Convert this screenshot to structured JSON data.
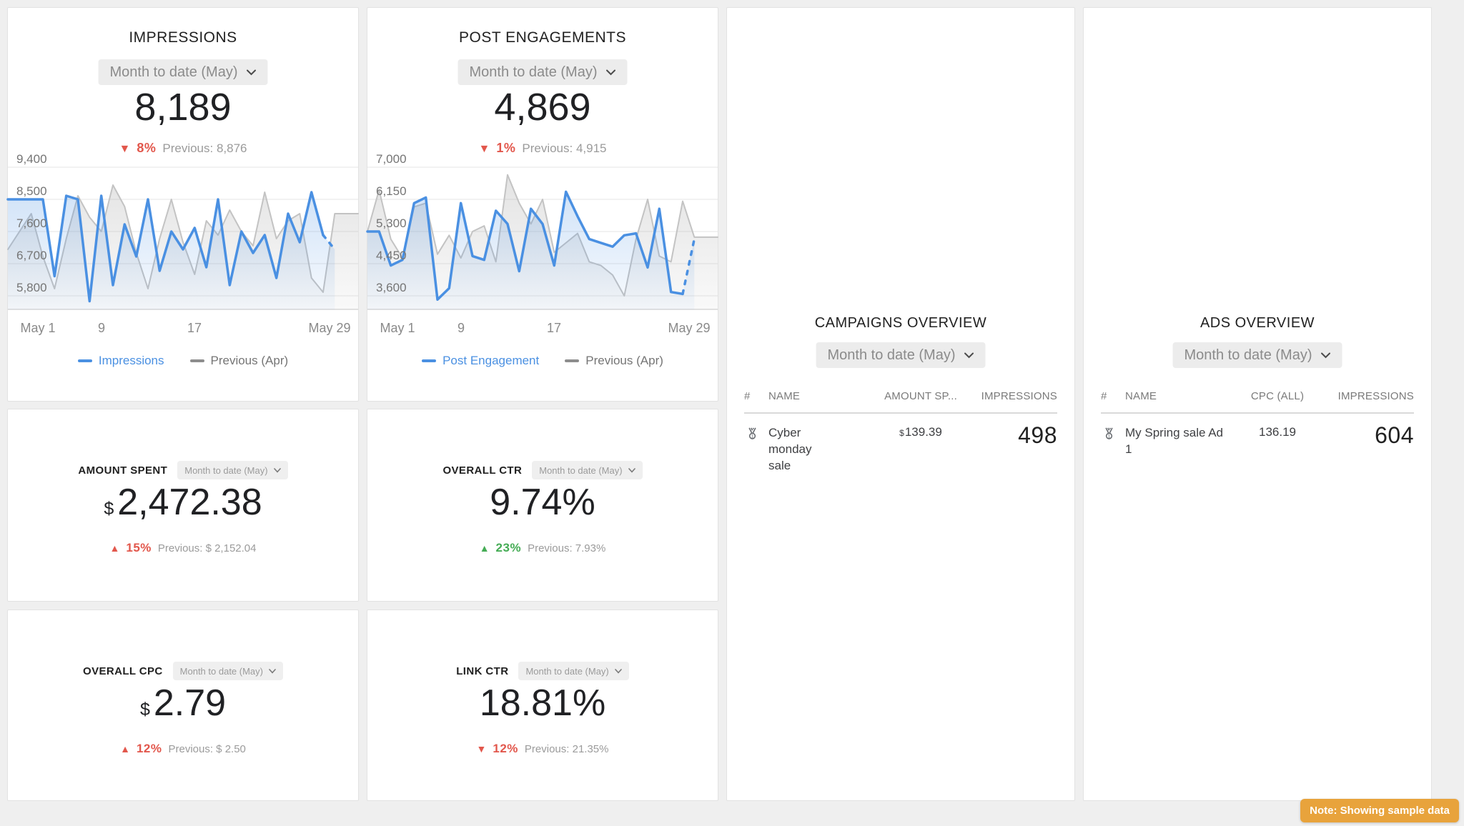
{
  "colors": {
    "accent_blue": "#4a90e2",
    "previous_gray": "#c3c3c3",
    "negative_red": "#e2574c",
    "positive_green": "#45ac55",
    "note_badge_bg": "#e8a33c",
    "dropdown_bg": "#ececec"
  },
  "impressions_card": {
    "title": "IMPRESSIONS",
    "date_range": "Month to date (May)",
    "value": "8,189",
    "delta_arrow": "▼",
    "delta_pct": "8%",
    "previous": "Previous: 8,876"
  },
  "post_card": {
    "title": "POST ENGAGEMENTS",
    "date_range": "Month to date (May)",
    "value": "4,869",
    "delta_arrow": "▼",
    "delta_pct": "1%",
    "previous": "Previous: 4,915"
  },
  "amount_card": {
    "title": "AMOUNT SPENT",
    "date_range": "Month to date (May)",
    "prefix": "$",
    "value": "2,472.38",
    "delta_arrow": "▲",
    "delta_pct": "15%",
    "previous": "Previous: $ 2,152.04"
  },
  "octr_card": {
    "title": "OVERALL CTR",
    "date_range": "Month to date (May)",
    "value": "9.74%",
    "delta_arrow": "▲",
    "delta_pct": "23%",
    "previous": "Previous: 7.93%"
  },
  "ocpc_card": {
    "title": "OVERALL CPC",
    "date_range": "Month to date (May)",
    "prefix": "$",
    "value": "2.79",
    "delta_arrow": "▲",
    "delta_pct": "12%",
    "previous": "Previous: $ 2.50"
  },
  "lctr_card": {
    "title": "LINK CTR",
    "date_range": "Month to date (May)",
    "value": "18.81%",
    "delta_arrow": "▼",
    "delta_pct": "12%",
    "previous": "Previous: 21.35%"
  },
  "campaigns_card": {
    "title": "CAMPAIGNS OVERVIEW",
    "date_range": "Month to date (May)",
    "headers": [
      "#",
      "NAME",
      "AMOUNT SP...",
      "IMPRESSIONS"
    ],
    "rows": [
      {
        "rank_icon": "medal-1",
        "name": "Cyber monday sale",
        "amount_prefix": "$",
        "amount": "139.39",
        "impressions": "498"
      }
    ]
  },
  "ads_card": {
    "title": "ADS OVERVIEW",
    "date_range": "Month to date (May)",
    "headers": [
      "#",
      "NAME",
      "CPC (ALL)",
      "IMPRESSIONS"
    ],
    "rows": [
      {
        "rank_icon": "medal-1",
        "name": "My Spring sale Ad 1",
        "cpc": "136.19",
        "impressions": "604"
      }
    ]
  },
  "note_badge": "Note: Showing sample data",
  "chart_data": [
    {
      "type": "line",
      "title": "Impressions – daily, May vs April",
      "x_slots": 31,
      "x_ticks": [
        {
          "pos": 0,
          "label": "May 1"
        },
        {
          "pos": 8,
          "label": "9"
        },
        {
          "pos": 16,
          "label": "17"
        },
        {
          "pos": 28,
          "label": "May 29"
        }
      ],
      "ylim": [
        5800,
        9400
      ],
      "yticks": [
        9400,
        8500,
        7600,
        6700,
        5800
      ],
      "grid": true,
      "legend_position": "bottom",
      "series": [
        {
          "name": "Impressions",
          "color": "#4a90e2",
          "dashed_tail": 1,
          "values": [
            8500,
            8500,
            8500,
            8500,
            6350,
            8600,
            8500,
            5650,
            8600,
            6100,
            7800,
            6900,
            8500,
            6500,
            7600,
            7100,
            7700,
            6600,
            8500,
            6100,
            7600,
            7000,
            7500,
            6300,
            8100,
            7300,
            8700,
            7500,
            7100
          ]
        },
        {
          "name": "Previous (Apr)",
          "color": "#c3c3c3",
          "extend_to_edge": true,
          "values": [
            7100,
            7600,
            8100,
            6900,
            6000,
            7400,
            8600,
            8000,
            7600,
            8900,
            8300,
            7000,
            6000,
            7400,
            8500,
            7300,
            6400,
            7900,
            7500,
            8200,
            7600,
            7200,
            8700,
            7400,
            7900,
            8100,
            6300,
            5900,
            8100,
            8100
          ]
        }
      ]
    },
    {
      "type": "line",
      "title": "Post Engagements – daily, May vs April",
      "x_slots": 31,
      "x_ticks": [
        {
          "pos": 0,
          "label": "May 1"
        },
        {
          "pos": 8,
          "label": "9"
        },
        {
          "pos": 16,
          "label": "17"
        },
        {
          "pos": 28,
          "label": "May 29"
        }
      ],
      "ylim": [
        3600,
        7000
      ],
      "yticks": [
        7000,
        6150,
        5300,
        4450,
        3600
      ],
      "grid": true,
      "legend_position": "bottom",
      "series": [
        {
          "name": "Post Engagement",
          "color": "#4a90e2",
          "dashed_tail": 1,
          "values": [
            5300,
            5300,
            4400,
            4550,
            6050,
            6200,
            3500,
            3800,
            6050,
            4650,
            4550,
            5850,
            5500,
            4250,
            5900,
            5500,
            4400,
            6350,
            5700,
            5100,
            5000,
            4900,
            5200,
            5250,
            4350,
            5900,
            3700,
            3650,
            5100
          ]
        },
        {
          "name": "Previous (Apr)",
          "color": "#c3c3c3",
          "extend_to_edge": true,
          "values": [
            5300,
            6400,
            5100,
            4600,
            5950,
            6050,
            4700,
            5200,
            4600,
            5300,
            5450,
            4500,
            6800,
            6050,
            5500,
            6150,
            4750,
            5000,
            5250,
            4500,
            4400,
            4150,
            3600,
            5100,
            6150,
            4650,
            4500,
            6100,
            5150,
            5150
          ]
        }
      ]
    }
  ]
}
